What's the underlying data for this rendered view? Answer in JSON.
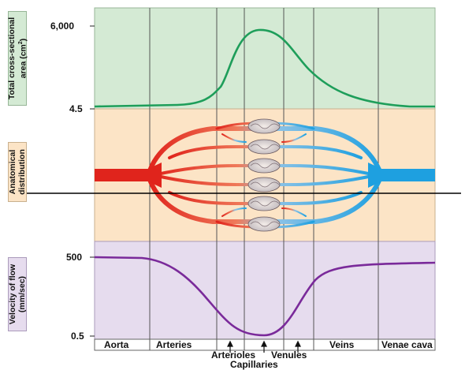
{
  "panels": {
    "area": {
      "label_line1": "Total cross-sectional",
      "label_line2": "area (cm",
      "label_sup": "2",
      "label_close": ")",
      "tick_high": "6,000",
      "tick_low": "4.5",
      "color": "#1e9e5a",
      "bg": "#d4ead4"
    },
    "anatomy": {
      "label_line1": "Anatomical",
      "label_line2": "distribution",
      "artery_color": "#e53c2c",
      "vein_color": "#2ea2dc",
      "bg": "#fce4c6"
    },
    "velocity": {
      "label_line1": "Velocity of flow",
      "label_line2": "(mm/sec)",
      "tick_high": "500",
      "tick_low": "0.5",
      "color": "#7a2a9a",
      "bg": "#e6dcee"
    }
  },
  "segments": {
    "aorta": "Aorta",
    "arteries": "Arteries",
    "veins": "Veins",
    "venae_cava": "Venae cava",
    "arterioles": "Arterioles",
    "venules": "Venules",
    "capillaries": "Capillaries"
  }
}
